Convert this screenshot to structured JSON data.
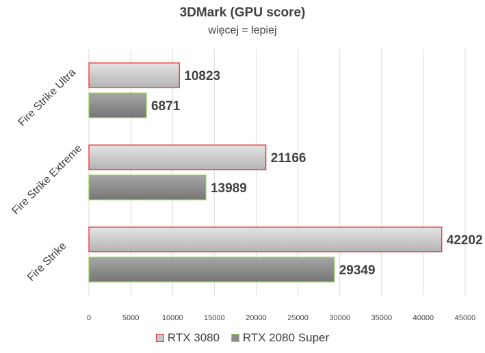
{
  "chart_data": {
    "type": "bar",
    "orientation": "horizontal",
    "title": "3DMark (GPU score)",
    "subtitle": "więcej = lepiej",
    "categories": [
      "Fire Strike Ultra",
      "Fire Strike Extreme",
      "Fire Strike"
    ],
    "series": [
      {
        "name": "RTX 3080",
        "values": [
          10823,
          21166,
          42202
        ],
        "fill": "#c9c9c9",
        "border": "#e02b2b"
      },
      {
        "name": "RTX 2080 Super",
        "values": [
          6871,
          13989,
          29349
        ],
        "fill": "#8c8c8c",
        "border": "#8fd14f"
      }
    ],
    "xlim": [
      0,
      45000
    ],
    "xticks": [
      0,
      5000,
      10000,
      15000,
      20000,
      25000,
      30000,
      35000,
      40000,
      45000
    ],
    "grid": true,
    "legend_position": "bottom",
    "data_labels": true
  }
}
